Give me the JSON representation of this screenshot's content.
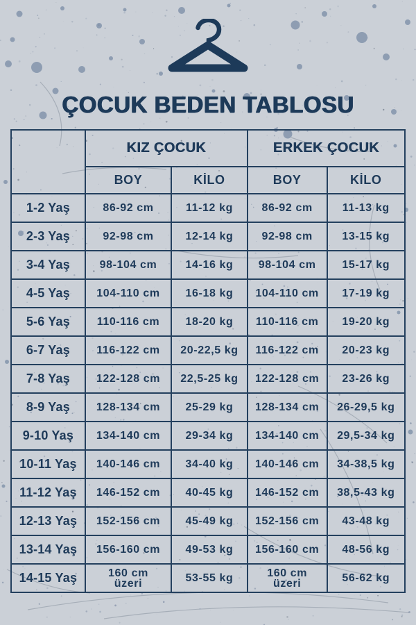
{
  "header": {
    "icon": "clothes-hanger-icon",
    "title": "ÇOCUK BEDEN TABLOSU"
  },
  "colors": {
    "ink": "#1e3a59",
    "border": "#24405e",
    "background": "#cbd0d7",
    "splatter": "#8495ac"
  },
  "chart_data": {
    "type": "table",
    "title": "ÇOCUK BEDEN TABLOSU",
    "corner_label": "",
    "group_headers": [
      "KIZ ÇOCUK",
      "ERKEK ÇOCUK"
    ],
    "sub_headers": [
      "BOY",
      "KİLO",
      "BOY",
      "KİLO"
    ],
    "rows": [
      {
        "age": "1-2 Yaş",
        "girl_height": "86-92 cm",
        "girl_weight": "11-12 kg",
        "boy_height": "86-92 cm",
        "boy_weight": "11-13 kg"
      },
      {
        "age": "2-3 Yaş",
        "girl_height": "92-98 cm",
        "girl_weight": "12-14 kg",
        "boy_height": "92-98 cm",
        "boy_weight": "13-15 kg"
      },
      {
        "age": "3-4 Yaş",
        "girl_height": "98-104 cm",
        "girl_weight": "14-16 kg",
        "boy_height": "98-104 cm",
        "boy_weight": "15-17 kg"
      },
      {
        "age": "4-5 Yaş",
        "girl_height": "104-110 cm",
        "girl_weight": "16-18 kg",
        "boy_height": "104-110 cm",
        "boy_weight": "17-19 kg"
      },
      {
        "age": "5-6 Yaş",
        "girl_height": "110-116 cm",
        "girl_weight": "18-20 kg",
        "boy_height": "110-116 cm",
        "boy_weight": "19-20 kg"
      },
      {
        "age": "6-7 Yaş",
        "girl_height": "116-122 cm",
        "girl_weight": "20-22,5 kg",
        "boy_height": "116-122 cm",
        "boy_weight": "20-23 kg"
      },
      {
        "age": "7-8 Yaş",
        "girl_height": "122-128 cm",
        "girl_weight": "22,5-25 kg",
        "boy_height": "122-128 cm",
        "boy_weight": "23-26 kg"
      },
      {
        "age": "8-9 Yaş",
        "girl_height": "128-134 cm",
        "girl_weight": "25-29 kg",
        "boy_height": "128-134 cm",
        "boy_weight": "26-29,5 kg"
      },
      {
        "age": "9-10 Yaş",
        "girl_height": "134-140 cm",
        "girl_weight": "29-34 kg",
        "boy_height": "134-140 cm",
        "boy_weight": "29,5-34 kg"
      },
      {
        "age": "10-11 Yaş",
        "girl_height": "140-146 cm",
        "girl_weight": "34-40 kg",
        "boy_height": "140-146 cm",
        "boy_weight": "34-38,5 kg"
      },
      {
        "age": "11-12 Yaş",
        "girl_height": "146-152 cm",
        "girl_weight": "40-45 kg",
        "boy_height": "146-152 cm",
        "boy_weight": "38,5-43 kg"
      },
      {
        "age": "12-13 Yaş",
        "girl_height": "152-156 cm",
        "girl_weight": "45-49 kg",
        "boy_height": "152-156 cm",
        "boy_weight": "43-48 kg"
      },
      {
        "age": "13-14 Yaş",
        "girl_height": "156-160 cm",
        "girl_weight": "49-53 kg",
        "boy_height": "156-160 cm",
        "boy_weight": "48-56 kg"
      },
      {
        "age": "14-15 Yaş",
        "girl_height": "160 cm\nüzeri",
        "girl_weight": "53-55 kg",
        "boy_height": "160 cm\nüzeri",
        "boy_weight": "56-62 kg"
      }
    ]
  }
}
